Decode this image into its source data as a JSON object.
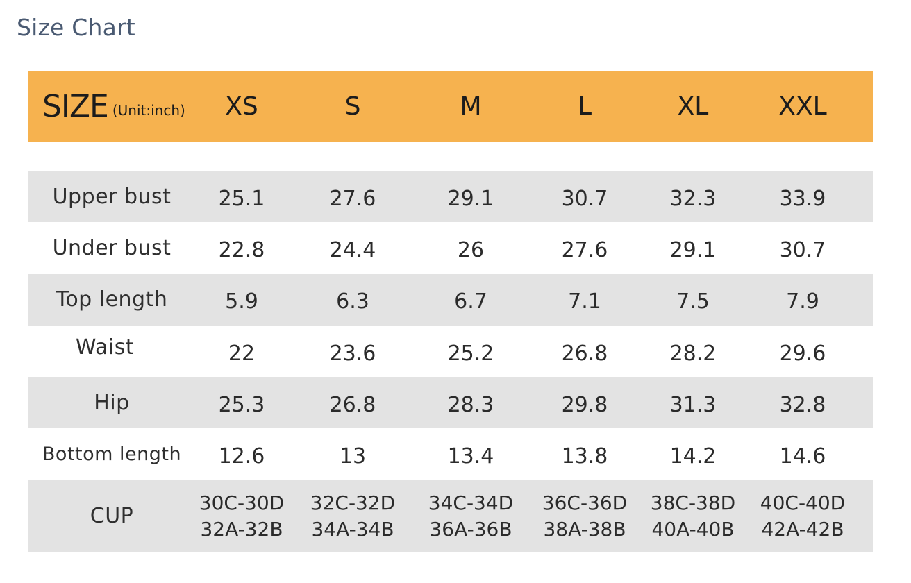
{
  "page": {
    "title": "Size Chart"
  },
  "table": {
    "header": {
      "size_label": "SIZE",
      "unit_label": "(Unit:inch)",
      "sizes": [
        "XS",
        "S",
        "M",
        "L",
        "XL",
        "XXL"
      ]
    },
    "rows": [
      {
        "label": "Upper bust",
        "values": [
          "25.1",
          "27.6",
          "29.1",
          "30.7",
          "32.3",
          "33.9"
        ]
      },
      {
        "label": "Under bust",
        "values": [
          "22.8",
          "24.4",
          "26",
          "27.6",
          "29.1",
          "30.7"
        ]
      },
      {
        "label": "Top length",
        "values": [
          "5.9",
          "6.3",
          "6.7",
          "7.1",
          "7.5",
          "7.9"
        ]
      },
      {
        "label": "Waist",
        "values": [
          "22",
          "23.6",
          "25.2",
          "26.8",
          "28.2",
          "29.6"
        ]
      },
      {
        "label": "Hip",
        "values": [
          "25.3",
          "26.8",
          "28.3",
          "29.8",
          "31.3",
          "32.8"
        ]
      },
      {
        "label": "Bottom length",
        "values": [
          "12.6",
          "13",
          "13.4",
          "13.8",
          "14.2",
          "14.6"
        ]
      }
    ],
    "cup": {
      "label": "CUP",
      "values": [
        [
          "30C-30D",
          "32A-32B"
        ],
        [
          "32C-32D",
          "34A-34B"
        ],
        [
          "34C-34D",
          "36A-36B"
        ],
        [
          "36C-36D",
          "38A-38B"
        ],
        [
          "38C-38D",
          "40A-40B"
        ],
        [
          "40C-40D",
          "42A-42B"
        ]
      ]
    }
  },
  "colors": {
    "header_bg": "#f6b24f",
    "shaded_row_bg": "#e3e3e3",
    "title_text": "#4a5a72"
  }
}
